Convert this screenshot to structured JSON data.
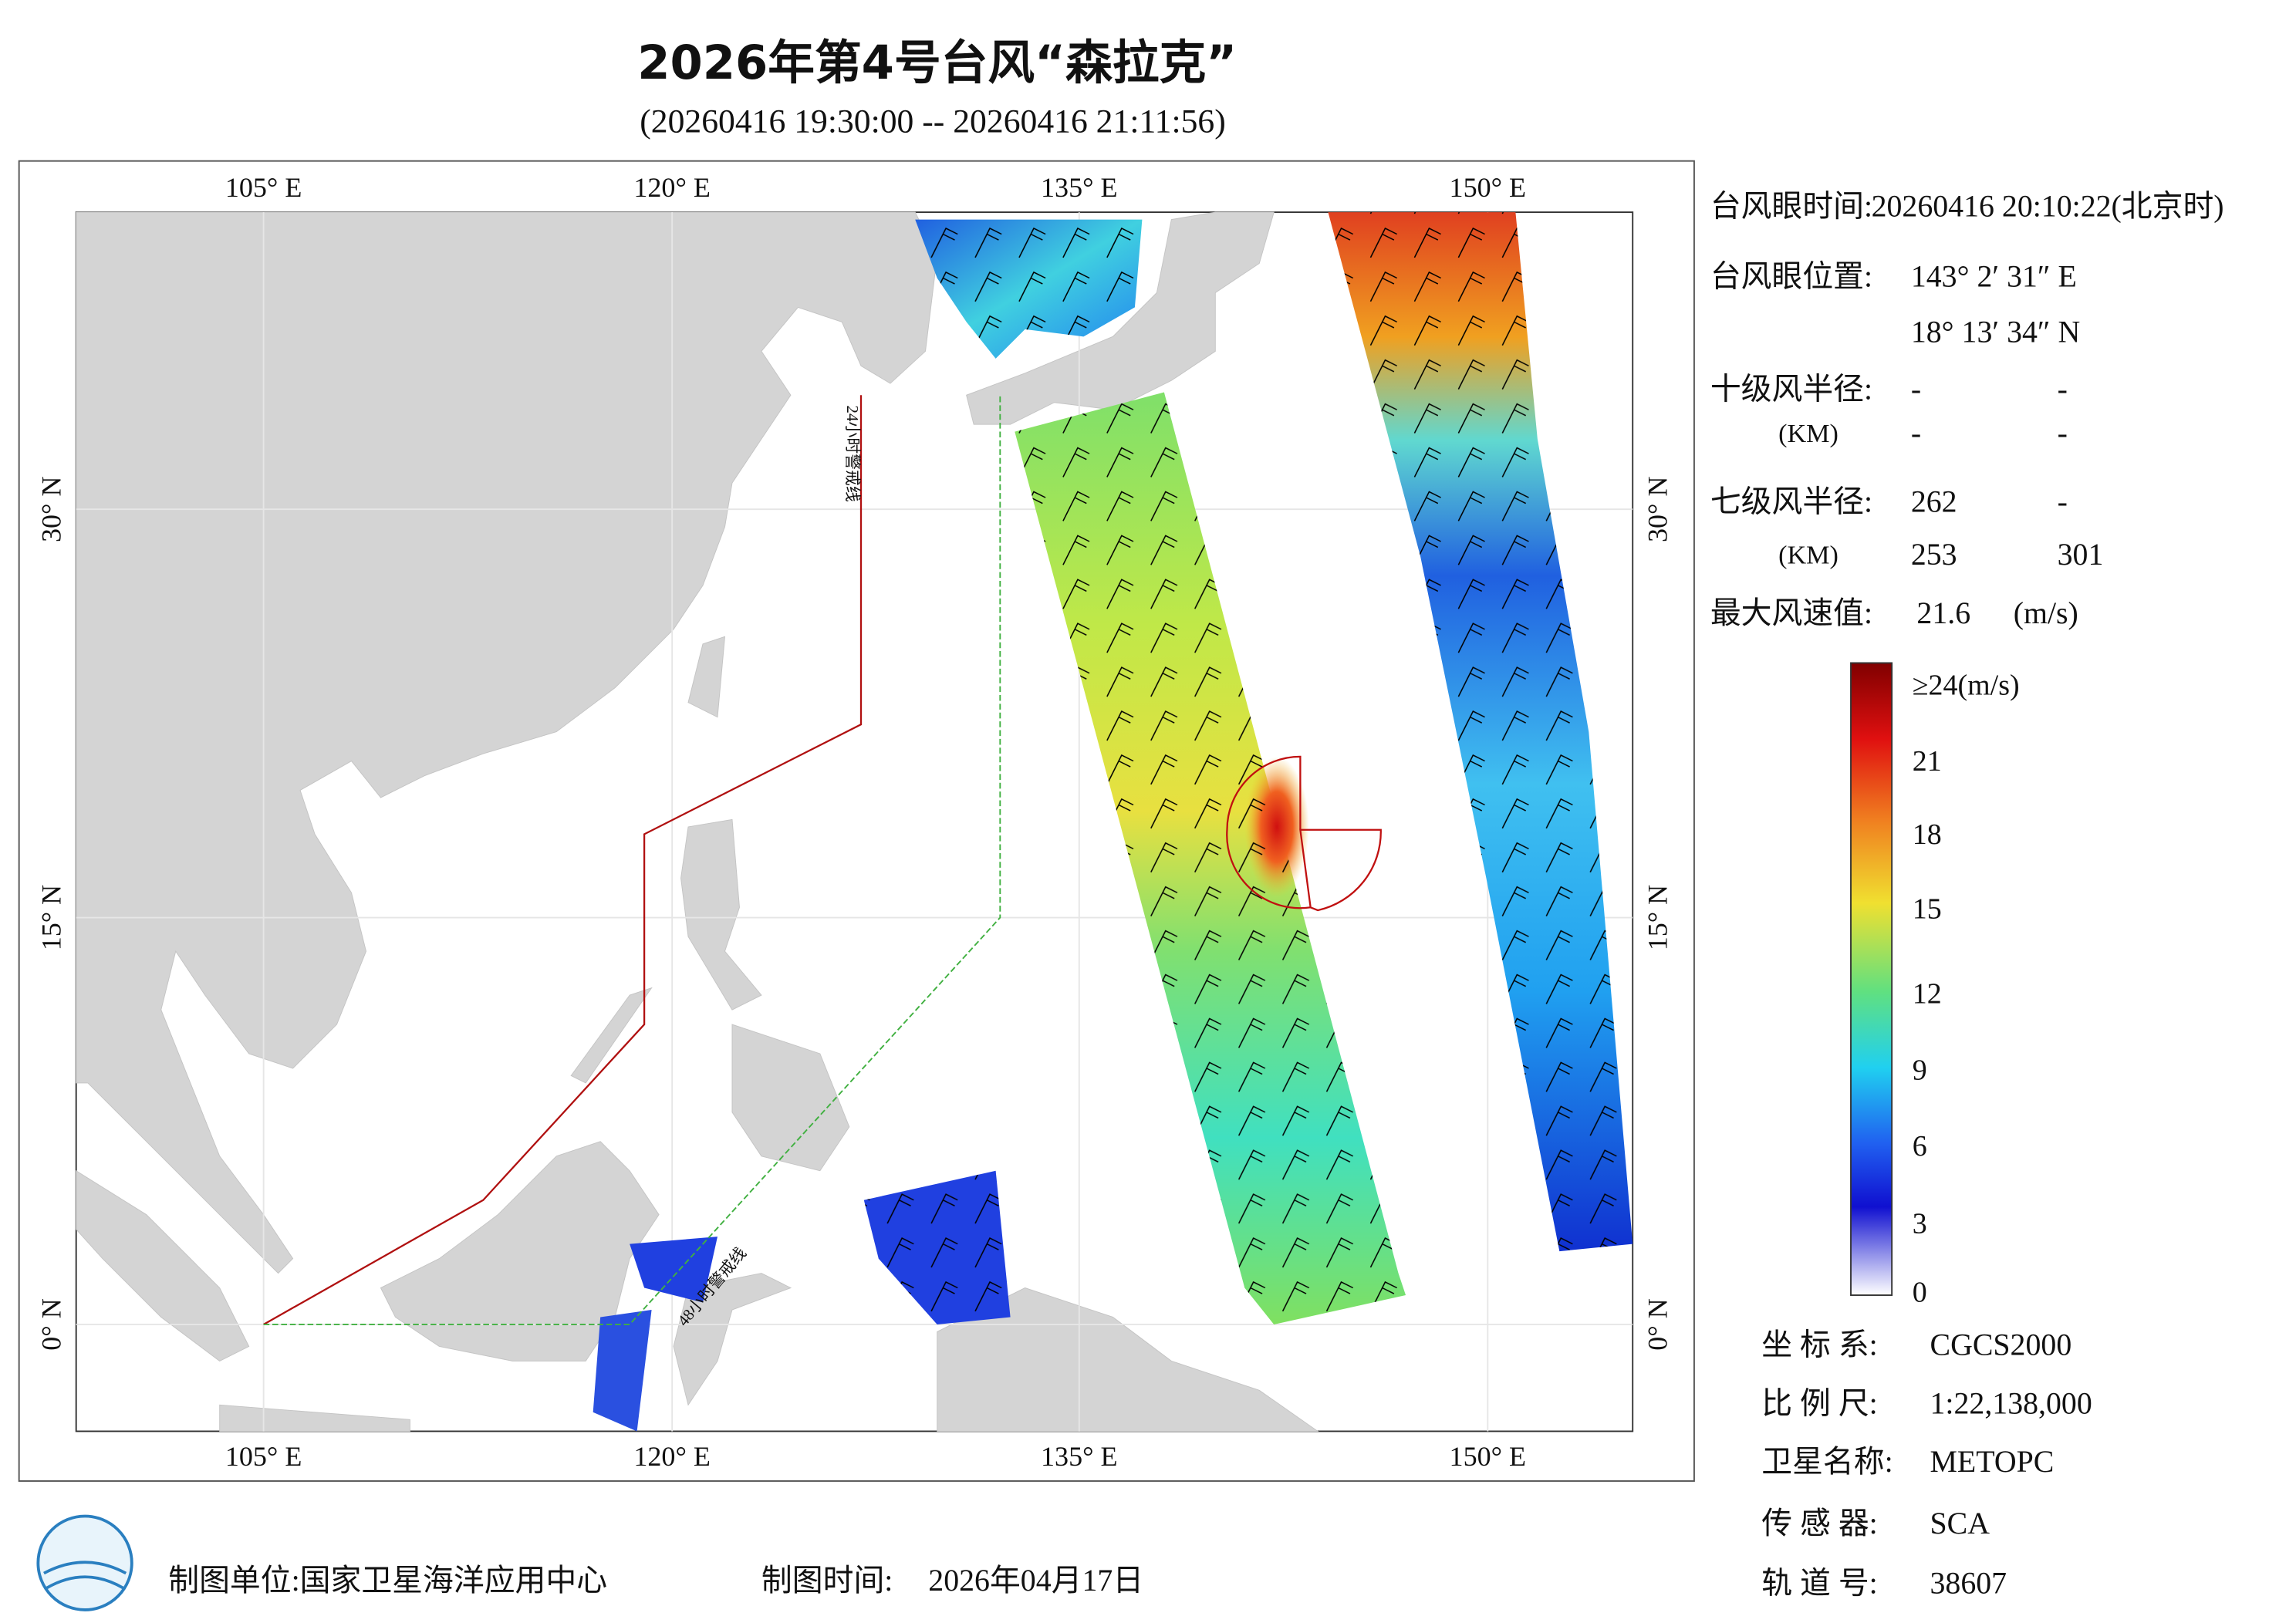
{
  "header": {
    "title": "2026年第4号台风“森拉克”",
    "subtitle": "(20260416 19:30:00 -- 20260416 21:11:56)"
  },
  "map": {
    "lon_labels": [
      "105° E",
      "120° E",
      "135° E",
      "150° E"
    ],
    "lat_labels": [
      "30° N",
      "15° N",
      "0° N"
    ],
    "warning_lines": [
      "24小时警戒线",
      "48小时警戒线"
    ]
  },
  "info": {
    "eye_time": {
      "label": "台风眼时间:",
      "value": "20260416 20:10:22(北京时)"
    },
    "eye_position": {
      "label": "台风眼位置:",
      "lon": "143° 2′ 31″ E",
      "lat": "18° 13′ 34″ N"
    },
    "radius_10": {
      "label": "十级风半径:",
      "unit": "(KM)",
      "values": [
        "-",
        "-",
        "-",
        "-"
      ]
    },
    "radius_7": {
      "label": "七级风半径:",
      "unit": "(KM)",
      "values": [
        "262",
        "-",
        "253",
        "301"
      ]
    },
    "max_wind": {
      "label": "最大风速值:",
      "value": "21.6",
      "unit": "(m/s)"
    }
  },
  "colorbar": {
    "labels": [
      "≥24(m/s)",
      21,
      18,
      15,
      12,
      9,
      6,
      3,
      0
    ]
  },
  "meta": [
    {
      "label": "坐 标 系:",
      "value": "CGCS2000"
    },
    {
      "label": "比 例 尺:",
      "value": "1:22,138,000"
    },
    {
      "label": "卫星名称:",
      "value": "METOPC"
    },
    {
      "label": "传 感 器:",
      "value": "SCA"
    },
    {
      "label": "轨 道 号:",
      "value": "38607"
    }
  ],
  "footer": {
    "unit_label": "制图单位:国家卫星海洋应用中心",
    "time_label": "制图时间:",
    "time_value": "2026年04月17日"
  }
}
